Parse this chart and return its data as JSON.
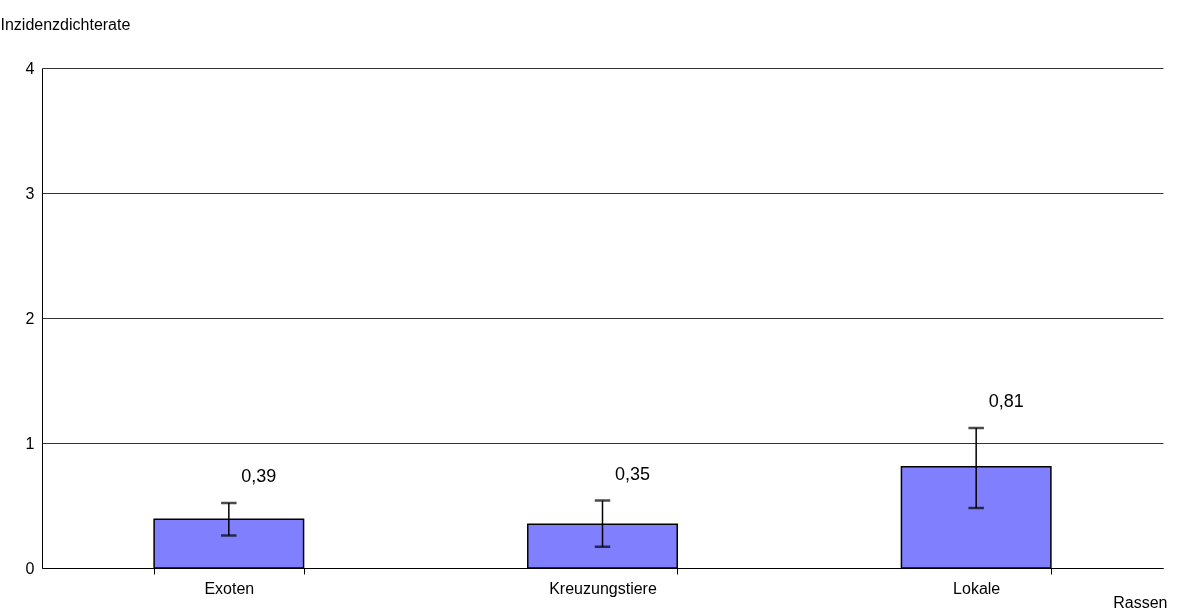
{
  "chart_data": {
    "type": "bar",
    "xlabel": "Rassen",
    "ylabel": "Inzidenzdichterate",
    "categories": [
      "Exoten",
      "Kreuzungstiere",
      "Lokale"
    ],
    "values": [
      0.39,
      0.35,
      0.81
    ],
    "errors": [
      [
        0.26,
        0.52
      ],
      [
        0.17,
        0.54
      ],
      [
        0.48,
        1.12
      ]
    ],
    "value_labels": [
      "0,39",
      "0,35",
      "0,81"
    ],
    "color": "#8080ff",
    "ylim": [
      0,
      4
    ],
    "yticks": [
      0,
      1,
      2,
      3,
      4
    ],
    "grid": "y"
  }
}
